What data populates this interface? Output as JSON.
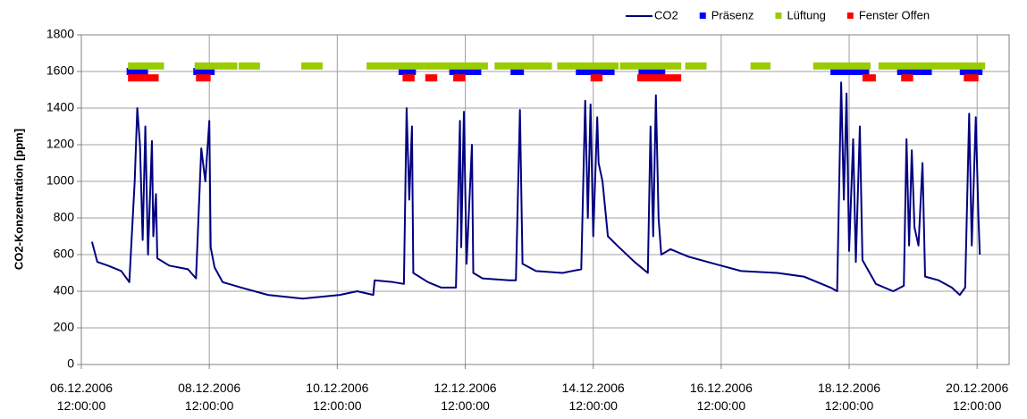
{
  "chart_data": {
    "type": "line",
    "ylabel": "CO2-Konzentration [ppm]",
    "ylim": [
      0,
      1800
    ],
    "yticks": [
      0,
      200,
      400,
      600,
      800,
      1000,
      1200,
      1400,
      1600,
      1800
    ],
    "xlim": [
      "2006-12-06 12:00",
      "2006-12-21 00:00"
    ],
    "xticks": [
      {
        "value": "2006-12-06 12:00",
        "label": "06.12.2006 12:00:00"
      },
      {
        "value": "2006-12-08 12:00",
        "label": "08.12.2006 12:00:00"
      },
      {
        "value": "2006-12-10 12:00",
        "label": "10.12.2006 12:00:00"
      },
      {
        "value": "2006-12-12 12:00",
        "label": "12.12.2006 12:00:00"
      },
      {
        "value": "2006-12-14 12:00",
        "label": "14.12.2006 12:00:00"
      },
      {
        "value": "2006-12-16 12:00",
        "label": "16.12.2006 12:00:00"
      },
      {
        "value": "2006-12-18 12:00",
        "label": "18.12.2006 12:00:00"
      },
      {
        "value": "2006-12-20 12:00",
        "label": "20.12.2006 12:00:00"
      }
    ],
    "grid": true,
    "legend": "top",
    "series": [
      {
        "name": "CO2",
        "color": "#000080",
        "x": [
          "2006-12-06 16:00",
          "2006-12-06 18:00",
          "2006-12-06 22:00",
          "2006-12-07 03:00",
          "2006-12-07 06:00",
          "2006-12-07 08:00",
          "2006-12-07 09:00",
          "2006-12-07 10:00",
          "2006-12-07 11:00",
          "2006-12-07 12:00",
          "2006-12-07 13:00",
          "2006-12-07 14:30",
          "2006-12-07 15:00",
          "2006-12-07 16:00",
          "2006-12-07 16:30",
          "2006-12-07 21:00",
          "2006-12-08 04:00",
          "2006-12-08 07:00",
          "2006-12-08 09:00",
          "2006-12-08 10:30",
          "2006-12-08 12:00",
          "2006-12-08 12:30",
          "2006-12-08 14:00",
          "2006-12-08 17:00",
          "2006-12-09 00:00",
          "2006-12-09 10:00",
          "2006-12-09 23:00",
          "2006-12-10 13:00",
          "2006-12-10 19:30",
          "2006-12-11 01:30",
          "2006-12-11 02:00",
          "2006-12-11 09:00",
          "2006-12-11 13:00",
          "2006-12-11 14:00",
          "2006-12-11 15:00",
          "2006-12-11 16:00",
          "2006-12-11 16:30",
          "2006-12-11 22:00",
          "2006-12-12 03:00",
          "2006-12-12 08:30",
          "2006-12-12 10:00",
          "2006-12-12 10:30",
          "2006-12-12 11:30",
          "2006-12-12 12:30",
          "2006-12-12 14:30",
          "2006-12-12 15:00",
          "2006-12-12 18:30",
          "2006-12-13 04:30",
          "2006-12-13 07:00",
          "2006-12-13 08:30",
          "2006-12-13 09:30",
          "2006-12-13 14:30",
          "2006-12-14 00:30",
          "2006-12-14 07:30",
          "2006-12-14 09:00",
          "2006-12-14 10:00",
          "2006-12-14 11:00",
          "2006-12-14 12:00",
          "2006-12-14 13:30",
          "2006-12-14 14:00",
          "2006-12-14 15:30",
          "2006-12-14 17:30",
          "2006-12-14 21:00",
          "2006-12-15 03:30",
          "2006-12-15 08:30",
          "2006-12-15 09:30",
          "2006-12-15 10:30",
          "2006-12-15 11:30",
          "2006-12-15 12:30",
          "2006-12-15 13:30",
          "2006-12-15 17:00",
          "2006-12-15 23:30",
          "2006-12-16 09:30",
          "2006-12-16 19:30",
          "2006-12-17 09:00",
          "2006-12-17 19:00",
          "2006-12-18 05:00",
          "2006-12-18 07:30",
          "2006-12-18 09:00",
          "2006-12-18 10:00",
          "2006-12-18 11:00",
          "2006-12-18 12:00",
          "2006-12-18 13:30",
          "2006-12-18 14:30",
          "2006-12-18 16:00",
          "2006-12-18 17:00",
          "2006-12-18 22:00",
          "2006-12-19 04:30",
          "2006-12-19 08:30",
          "2006-12-19 09:30",
          "2006-12-19 10:30",
          "2006-12-19 11:30",
          "2006-12-19 12:30",
          "2006-12-19 14:00",
          "2006-12-19 15:30",
          "2006-12-19 16:30",
          "2006-12-19 21:30",
          "2006-12-20 02:30",
          "2006-12-20 05:30",
          "2006-12-20 07:30",
          "2006-12-20 09:00",
          "2006-12-20 10:00",
          "2006-12-20 11:30",
          "2006-12-20 12:30",
          "2006-12-20 13:00"
        ],
        "values": [
          670,
          560,
          540,
          510,
          450,
          1000,
          1400,
          1200,
          680,
          1300,
          600,
          1220,
          700,
          930,
          580,
          540,
          520,
          470,
          1180,
          1000,
          1330,
          640,
          530,
          450,
          420,
          380,
          360,
          380,
          400,
          380,
          460,
          450,
          440,
          1400,
          900,
          1300,
          500,
          450,
          420,
          420,
          1330,
          640,
          1380,
          550,
          1200,
          500,
          470,
          460,
          460,
          1390,
          550,
          510,
          500,
          520,
          1440,
          800,
          1420,
          700,
          1350,
          1100,
          1000,
          700,
          650,
          560,
          500,
          1300,
          700,
          1470,
          800,
          600,
          630,
          590,
          550,
          510,
          500,
          480,
          420,
          400,
          1540,
          900,
          1480,
          620,
          1230,
          560,
          1300,
          570,
          440,
          400,
          430,
          1230,
          650,
          1170,
          750,
          650,
          1100,
          480,
          460,
          420,
          380,
          420,
          1370,
          650,
          1350,
          800,
          600
        ]
      },
      {
        "name": "Präsenz",
        "color": "#0000ff",
        "type": "interval",
        "level": 1600,
        "intervals": [
          [
            "2006-12-07 06:00",
            "2006-12-07 12:00"
          ],
          [
            "2006-12-08 07:00",
            "2006-12-08 13:00"
          ],
          [
            "2006-12-11 12:00",
            "2006-12-11 16:30"
          ],
          [
            "2006-12-12 07:00",
            "2006-12-12 17:00"
          ],
          [
            "2006-12-13 06:00",
            "2006-12-13 09:00"
          ],
          [
            "2006-12-14 06:30",
            "2006-12-14 19:00"
          ],
          [
            "2006-12-15 06:00",
            "2006-12-15 14:00"
          ],
          [
            "2006-12-18 06:00",
            "2006-12-18 18:30"
          ],
          [
            "2006-12-19 07:00",
            "2006-12-19 18:00"
          ],
          [
            "2006-12-20 06:30",
            "2006-12-20 13:00"
          ]
        ]
      },
      {
        "name": "Lüftung",
        "color": "#99cc00",
        "type": "interval",
        "level": 1630,
        "intervals": [
          [
            "2006-12-07 06:30",
            "2006-12-07 18:00"
          ],
          [
            "2006-12-08 07:30",
            "2006-12-08 14:30"
          ],
          [
            "2006-12-08 16:30",
            "2006-12-08 21:30"
          ],
          [
            "2006-12-09 00:00",
            "2006-12-09 06:00"
          ],
          [
            "2006-12-09 23:30",
            "2006-12-10 05:30"
          ],
          [
            "2006-12-11 00:00",
            "2006-12-11 10:30"
          ],
          [
            "2006-12-11 12:30",
            "2006-12-11 19:30"
          ],
          [
            "2006-12-11 21:30",
            "2006-12-12 19:30"
          ],
          [
            "2006-12-13 00:00",
            "2006-12-13 19:30"
          ],
          [
            "2006-12-13 23:30",
            "2006-12-14 20:30"
          ],
          [
            "2006-12-14 23:00",
            "2006-12-15 20:00"
          ],
          [
            "2006-12-15 23:30",
            "2006-12-16 05:30"
          ],
          [
            "2006-12-17 00:00",
            "2006-12-17 05:30"
          ],
          [
            "2006-12-17 23:30",
            "2006-12-18 19:00"
          ],
          [
            "2006-12-19 00:00",
            "2006-12-19 19:00"
          ],
          [
            "2006-12-19 20:00",
            "2006-12-20 14:00"
          ]
        ]
      },
      {
        "name": "Fenster Offen",
        "color": "#ff0000",
        "type": "interval",
        "level": 1565,
        "intervals": [
          [
            "2006-12-07 06:30",
            "2006-12-07 11:00"
          ],
          [
            "2006-12-07 13:00",
            "2006-12-07 16:00"
          ],
          [
            "2006-12-08 08:00",
            "2006-12-08 11:30"
          ],
          [
            "2006-12-11 13:30",
            "2006-12-11 16:00"
          ],
          [
            "2006-12-11 22:00",
            "2006-12-12 00:30"
          ],
          [
            "2006-12-12 08:30",
            "2006-12-12 11:00"
          ],
          [
            "2006-12-14 12:00",
            "2006-12-14 14:30"
          ],
          [
            "2006-12-15 05:30",
            "2006-12-15 20:00"
          ],
          [
            "2006-12-18 18:00",
            "2006-12-18 21:00"
          ],
          [
            "2006-12-19 08:30",
            "2006-12-19 11:00"
          ],
          [
            "2006-12-20 08:00",
            "2006-12-20 11:30"
          ]
        ]
      }
    ]
  }
}
